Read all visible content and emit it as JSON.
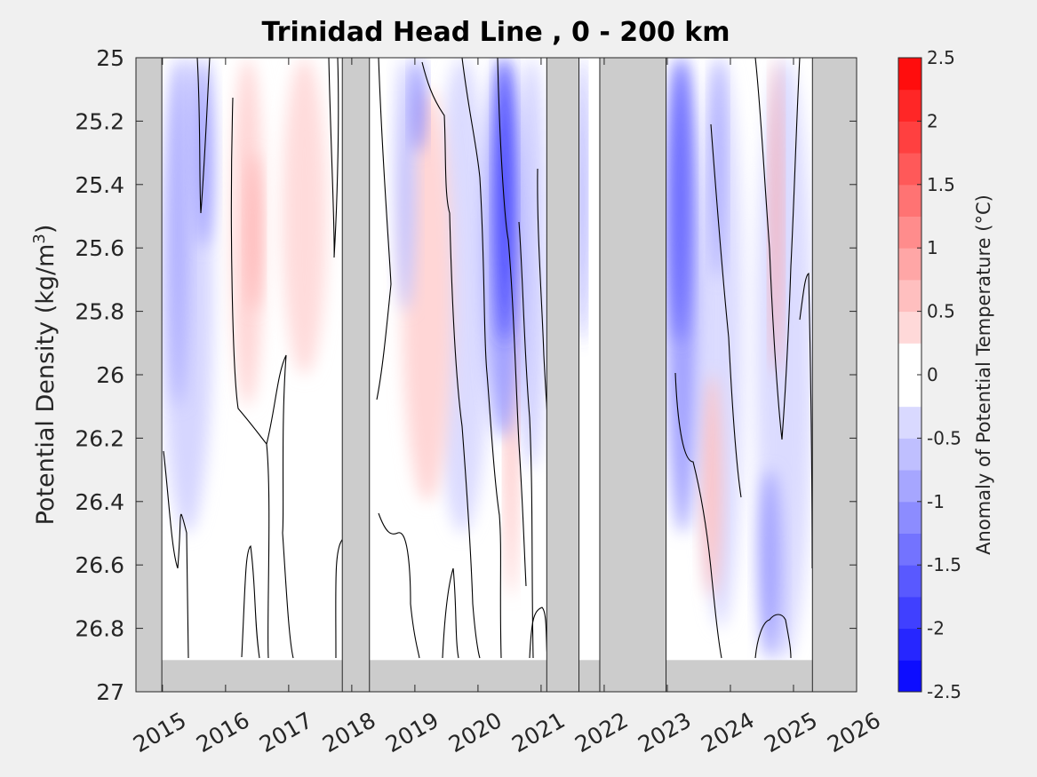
{
  "chart_data": {
    "type": "heatmap",
    "title": "Trinidad Head Line , 0 - 200 km",
    "ylabel": "Potential Density (kg/m",
    "ylabel_sup": "3",
    "ylabel_close": ")",
    "x_ticks": [
      "2015",
      "2016",
      "2017",
      "2018",
      "2019",
      "2020",
      "2021",
      "2022",
      "2023",
      "2024",
      "2025",
      "2026"
    ],
    "xlim": [
      2014.58,
      2026.0
    ],
    "y_ticks": [
      "25",
      "25.2",
      "25.4",
      "25.6",
      "25.8",
      "26",
      "26.2",
      "26.4",
      "26.6",
      "26.8",
      "27"
    ],
    "ylim": [
      25.0,
      27.0
    ],
    "y_reversed": true,
    "colorbar": {
      "label": "Anomaly of Potential Temperature (°C)",
      "ticks": [
        "2.5",
        "2",
        "1.5",
        "1",
        "0.5",
        "0",
        "-0.5",
        "-1",
        "-1.5",
        "-2",
        "-2.5"
      ],
      "range": [
        -2.5,
        2.5
      ],
      "step": 0.25,
      "colors": {
        "negative_max": "#0000ff",
        "neutral": "#ffffff",
        "positive_max": "#ff0000"
      }
    },
    "no_data_color": "#cccccc",
    "no_data_periods": [
      [
        2014.58,
        2014.99
      ],
      [
        2017.85,
        2018.28
      ],
      [
        2021.09,
        2021.6
      ],
      [
        2021.93,
        2022.98
      ],
      [
        2025.3,
        2026.0
      ]
    ],
    "no_data_bottom_layer": [
      26.9,
      27.0
    ],
    "anomaly_blobs": [
      {
        "x": [
          2015.1,
          2015.4
        ],
        "y": [
          25.0,
          26.1
        ],
        "value": -0.8
      },
      {
        "x": [
          2015.5,
          2015.8
        ],
        "y": [
          25.0,
          25.6
        ],
        "value": -0.9
      },
      {
        "x": [
          2014.99,
          2015.8
        ],
        "y": [
          25.0,
          26.5
        ],
        "value": -0.4
      },
      {
        "x": [
          2016.1,
          2016.6
        ],
        "y": [
          25.0,
          26.1
        ],
        "value": 0.4
      },
      {
        "x": [
          2016.35,
          2016.55
        ],
        "y": [
          25.3,
          25.8
        ],
        "value": 0.75
      },
      {
        "x": [
          2016.9,
          2017.6
        ],
        "y": [
          25.0,
          26.0
        ],
        "value": 0.35
      },
      {
        "x": [
          2018.7,
          2019.0
        ],
        "y": [
          25.0,
          25.8
        ],
        "value": -0.6
      },
      {
        "x": [
          2018.95,
          2019.15
        ],
        "y": [
          25.0,
          25.3
        ],
        "value": -1.2
      },
      {
        "x": [
          2018.8,
          2019.6
        ],
        "y": [
          25.1,
          26.4
        ],
        "value": 0.4
      },
      {
        "x": [
          2019.3,
          2020.2
        ],
        "y": [
          25.0,
          26.5
        ],
        "value": -0.35
      },
      {
        "x": [
          2020.1,
          2020.7
        ],
        "y": [
          25.0,
          26.2
        ],
        "value": -0.9
      },
      {
        "x": [
          2020.3,
          2020.55
        ],
        "y": [
          25.0,
          25.9
        ],
        "value": -1.9
      },
      {
        "x": [
          2020.45,
          2020.6
        ],
        "y": [
          25.5,
          26.7
        ],
        "value": 0.8
      },
      {
        "x": [
          2020.6,
          2021.09
        ],
        "y": [
          25.0,
          26.3
        ],
        "value": -0.45
      },
      {
        "x": [
          2021.6,
          2021.7
        ],
        "y": [
          25.0,
          25.9
        ],
        "value": -1.6
      },
      {
        "x": [
          2022.98,
          2023.5
        ],
        "y": [
          25.0,
          26.5
        ],
        "value": -0.9
      },
      {
        "x": [
          2023.05,
          2023.35
        ],
        "y": [
          25.0,
          25.9
        ],
        "value": -1.5
      },
      {
        "x": [
          2023.7,
          2023.9
        ],
        "y": [
          25.0,
          25.7
        ],
        "value": -0.9
      },
      {
        "x": [
          2023.55,
          2023.85
        ],
        "y": [
          26.0,
          26.7
        ],
        "value": 0.6
      },
      {
        "x": [
          2023.5,
          2024.2
        ],
        "y": [
          25.0,
          26.8
        ],
        "value": -0.35
      },
      {
        "x": [
          2024.45,
          2024.8
        ],
        "y": [
          26.3,
          26.9
        ],
        "value": -0.9
      },
      {
        "x": [
          2024.65,
          2024.8
        ],
        "y": [
          25.0,
          26.0
        ],
        "value": 0.9
      },
      {
        "x": [
          2024.4,
          2025.3
        ],
        "y": [
          25.0,
          26.9
        ],
        "value": -0.35
      }
    ]
  }
}
